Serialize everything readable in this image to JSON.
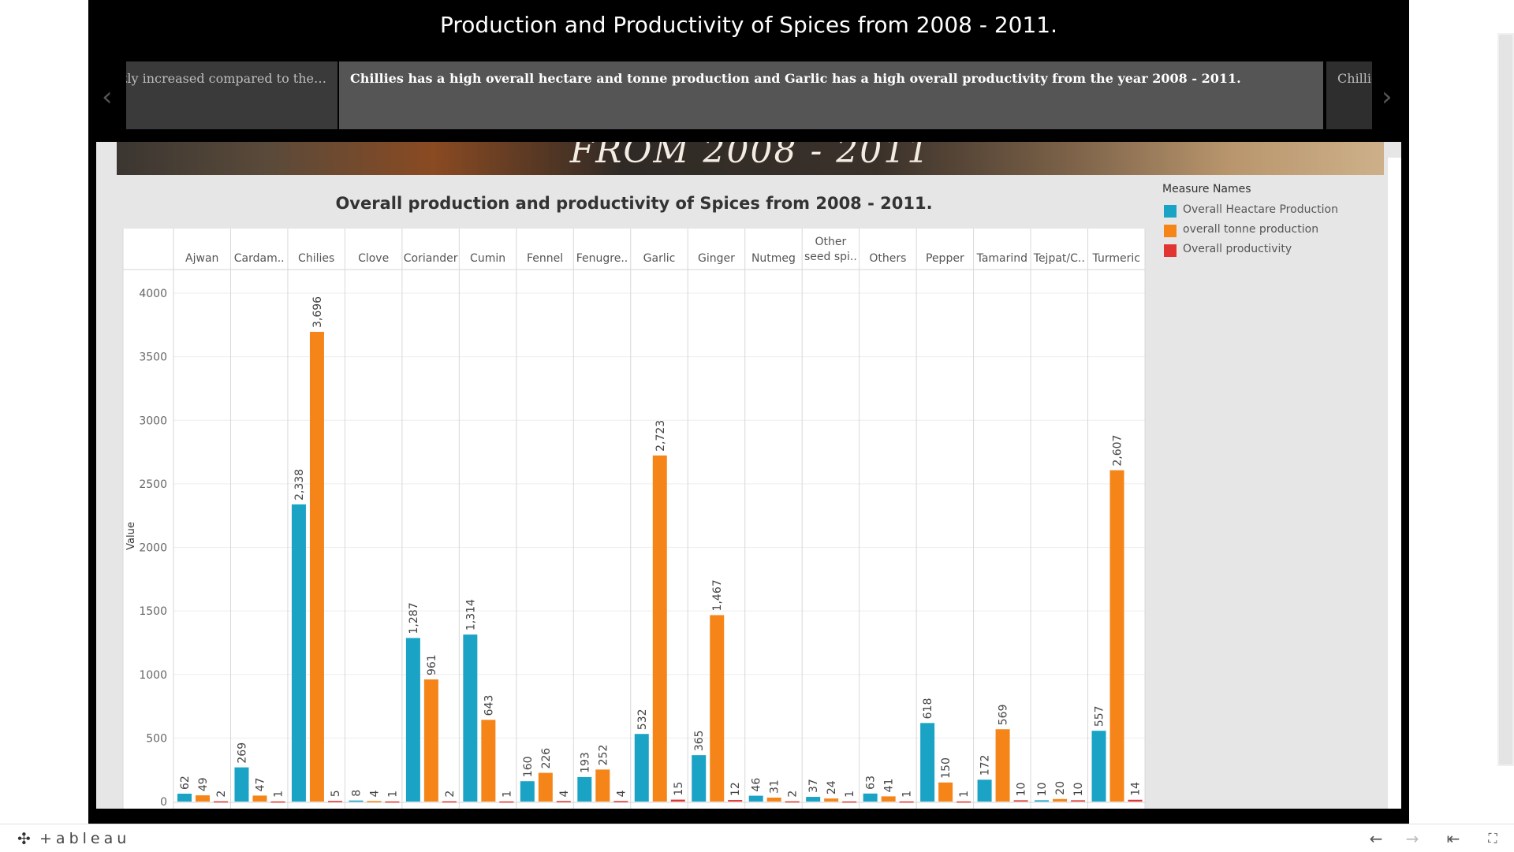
{
  "story": {
    "title": "Production and Productivity of Spices from 2008 - 2011.",
    "points": {
      "prev": "…ghtly increased compared to the",
      "current": "Chillies has a high overall hectare and tonne production and Garlic has a high overall productivity from the year 2008 - 2011.",
      "next": "Chillie…"
    },
    "banner_text": "FROM 2008 - 2011"
  },
  "icons": {
    "prev": "chevron-left-icon",
    "next": "chevron-right-icon",
    "undo": "arrow-left-icon",
    "redo": "arrow-right-icon",
    "revert": "revert-icon",
    "fullscreen": "fullscreen-icon",
    "logo": "tableau-logo-icon"
  },
  "glyphs": {
    "prev": "‹",
    "next": "›",
    "undo": "←",
    "redo": "→",
    "revert": "⇤",
    "fullscreen": "⛶",
    "logo": "✣"
  },
  "footer": {
    "brand": "+ableau"
  },
  "chart_data": {
    "type": "bar",
    "title": "Overall production and productivity of Spices from 2008 - 2011.",
    "ylabel": "Value",
    "xlabel": "",
    "ylim": [
      0,
      4000
    ],
    "yticks": [
      "0",
      "500",
      "1000",
      "1500",
      "2000",
      "2500",
      "3000",
      "3500",
      "4000"
    ],
    "ytick_values": [
      0,
      500,
      1000,
      1500,
      2000,
      2500,
      3000,
      3500,
      4000
    ],
    "categories": [
      "Ajwan",
      "Cardam..",
      "Chilies",
      "Clove",
      "Coriander",
      "Cumin",
      "Fennel",
      "Fenugre..",
      "Garlic",
      "Ginger",
      "Nutmeg",
      "Other seed spi..",
      "Others",
      "Pepper",
      "Tamarind",
      "Tejpat/C..",
      "Turmeric"
    ],
    "grid": true,
    "legend_position": "right",
    "legend_title": "Measure Names",
    "series": [
      {
        "name": "Overall Heactare Production",
        "color": "#1ba3c6",
        "values": [
          62,
          269,
          2338,
          8,
          1287,
          1314,
          160,
          193,
          532,
          365,
          46,
          37,
          63,
          618,
          172,
          10,
          557
        ],
        "labels": [
          "62",
          "269",
          "2,338",
          "8",
          "1,287",
          "1,314",
          "160",
          "193",
          "532",
          "365",
          "46",
          "37",
          "63",
          "618",
          "172",
          "10",
          "557"
        ]
      },
      {
        "name": "overall tonne production",
        "color": "#f58518",
        "values": [
          49,
          47,
          3696,
          4,
          961,
          643,
          226,
          252,
          2723,
          1467,
          31,
          24,
          41,
          150,
          569,
          20,
          2607
        ],
        "labels": [
          "49",
          "47",
          "3,696",
          "4",
          "961",
          "643",
          "226",
          "252",
          "2,723",
          "1,467",
          "31",
          "24",
          "41",
          "150",
          "569",
          "20",
          "2,607"
        ]
      },
      {
        "name": "Overall productivity",
        "color": "#e03531",
        "values": [
          2,
          1,
          5,
          1,
          2,
          1,
          4,
          4,
          15,
          12,
          2,
          1,
          1,
          1,
          10,
          10,
          14
        ],
        "labels": [
          "2",
          "1",
          "5",
          "1",
          "2",
          "1",
          "4",
          "4",
          "15",
          "12",
          "2",
          "1",
          "1",
          "1",
          "10",
          "10",
          "14"
        ]
      }
    ]
  }
}
